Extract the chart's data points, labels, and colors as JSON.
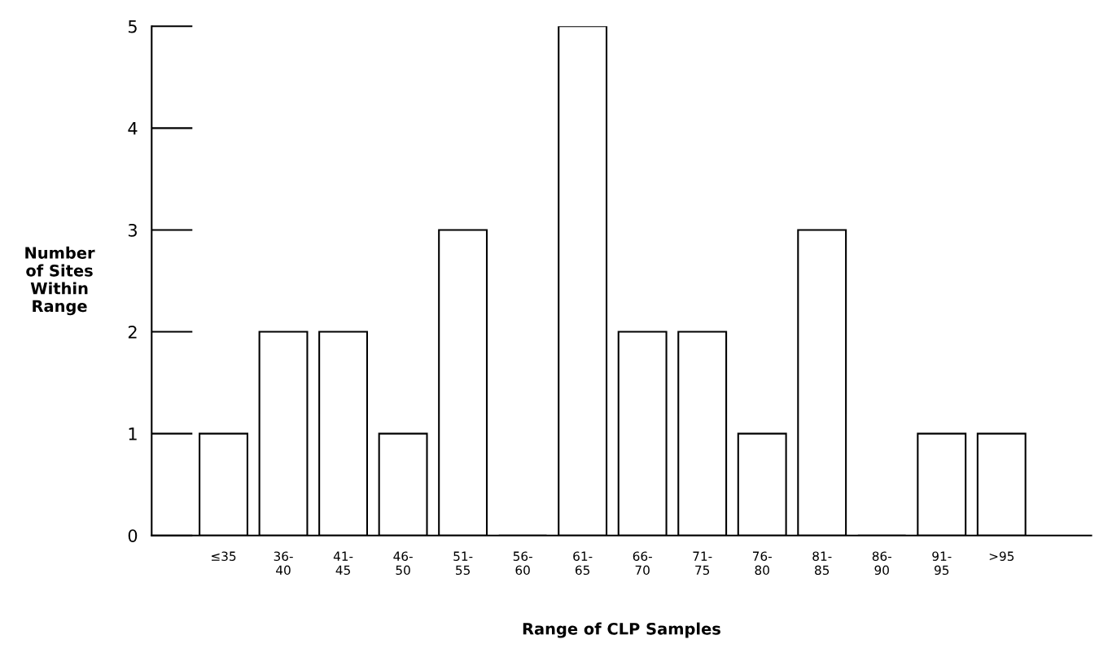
{
  "chart_data": {
    "type": "bar",
    "xlabel": "Range of CLP Samples",
    "ylabel": "Number\nof Sites\nWithin\nRange",
    "categories": [
      "≤35",
      "36-\n40",
      "41-\n45",
      "46-\n50",
      "51-\n55",
      "56-\n60",
      "61-\n65",
      "66-\n70",
      "71-\n75",
      "76-\n80",
      "81-\n85",
      "86-\n90",
      "91-\n95",
      ">95"
    ],
    "values": [
      1,
      2,
      2,
      1,
      3,
      0,
      5,
      2,
      2,
      1,
      3,
      0,
      1,
      1
    ],
    "color": "#ffffff",
    "ylim": [
      0,
      5
    ],
    "yticks": [
      0,
      1,
      2,
      3,
      4,
      5
    ],
    "grid": false,
    "legend": false
  }
}
